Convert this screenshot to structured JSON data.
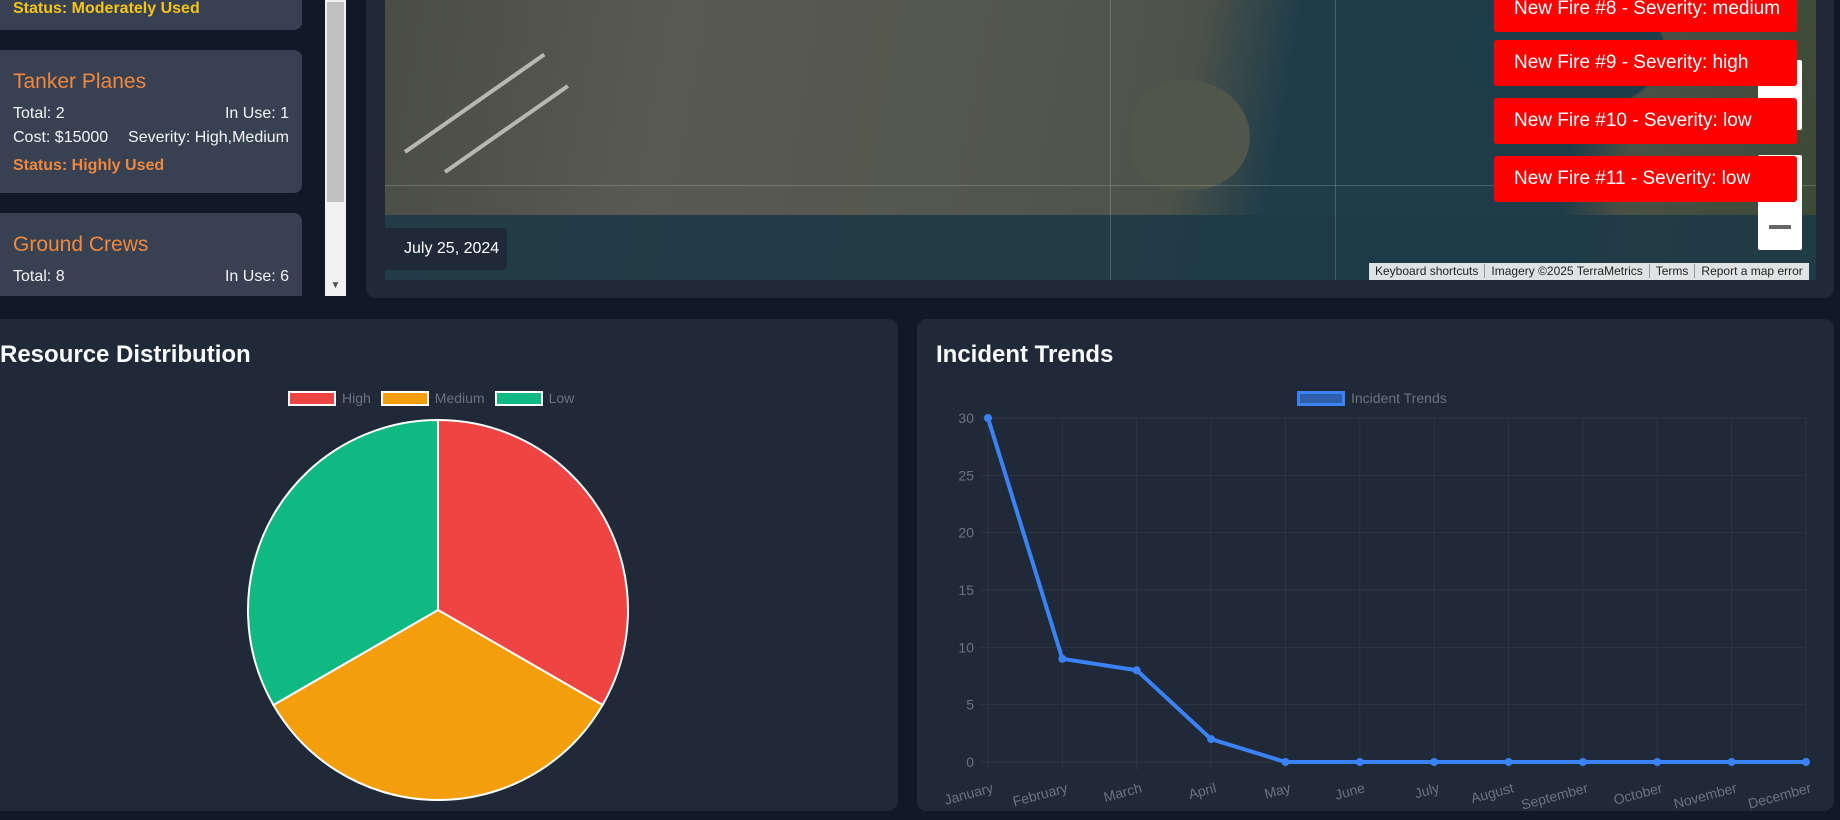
{
  "resources": [
    {
      "status": "Status: Moderately Used",
      "status_color": "#f5c518"
    },
    {
      "name": "Tanker Planes",
      "total": "Total: 2",
      "in_use": "In Use: 1",
      "cost": "Cost: $15000",
      "severity": "Severity: High,Medium",
      "status": "Status: Highly Used",
      "status_color": "#f0883e"
    },
    {
      "name": "Ground Crews",
      "total": "Total: 8",
      "in_use": "In Use: 6"
    }
  ],
  "map": {
    "date": "July 25, 2024",
    "alerts": [
      "New Fire #8 - Severity: medium",
      "New Fire #9 - Severity: high",
      "New Fire #10 - Severity: low",
      "New Fire #11 - Severity: low"
    ],
    "attribution": [
      "Keyboard shortcuts",
      "Imagery ©2025 TerraMetrics",
      "Terms",
      "Report a map error"
    ]
  },
  "colors": {
    "high": "#ef4444",
    "medium": "#f59e0b",
    "low": "#10b981",
    "line": "#3b82f6"
  },
  "icons": {
    "zoom_in": "plus-icon",
    "zoom_out": "minus-icon",
    "scroll_down": "chevron-down-icon"
  },
  "resource_chart": {
    "title": "Resource Distribution",
    "chart_data": {
      "type": "pie",
      "labels": [
        "High",
        "Medium",
        "Low"
      ],
      "values": [
        1,
        1,
        1
      ],
      "colors": [
        "#ef4444",
        "#f59e0b",
        "#10b981"
      ],
      "legend": "top"
    }
  },
  "incident_chart": {
    "title": "Incident Trends",
    "chart_data": {
      "type": "line",
      "categories": [
        "January",
        "February",
        "March",
        "April",
        "May",
        "June",
        "July",
        "August",
        "September",
        "October",
        "November",
        "December"
      ],
      "series": [
        {
          "name": "Incident Trends",
          "values": [
            30,
            9,
            8,
            2,
            0,
            0,
            0,
            0,
            0,
            0,
            0,
            0
          ]
        }
      ],
      "ylim": [
        0,
        30
      ],
      "yticks": [
        0,
        5,
        10,
        15,
        20,
        25,
        30
      ],
      "grid": true,
      "legend": "top"
    }
  }
}
